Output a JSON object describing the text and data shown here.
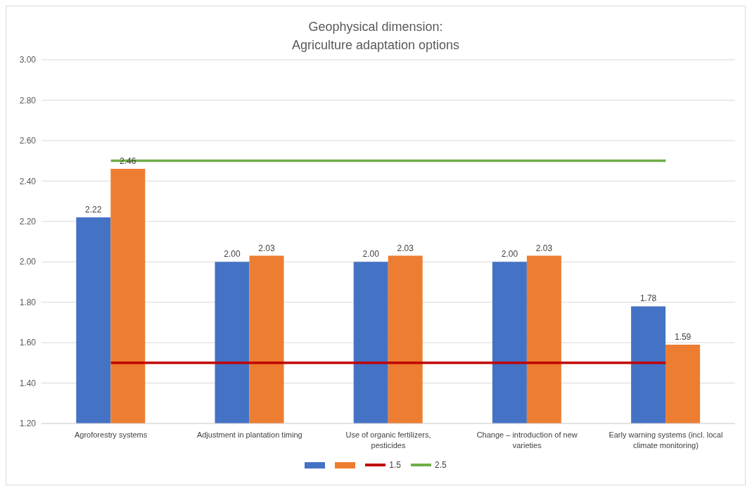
{
  "chart_data": {
    "type": "bar",
    "title": "Geophysical dimension:\nAgriculture adaptation options",
    "categories": [
      "Agroforestry systems",
      "Adjustment in plantation timing",
      "Use of organic fertilizers, pesticides",
      "Change – introduction of new varieties",
      "Early warning systems (incl. local climate monitoring)"
    ],
    "series": [
      {
        "color": "#4472c4",
        "values": [
          2.22,
          2.0,
          2.0,
          2.0,
          1.78
        ],
        "value_labels": [
          "2.22",
          "2.00",
          "2.00",
          "2.00",
          "1.78"
        ]
      },
      {
        "color": "#ed7d31",
        "values": [
          2.46,
          2.03,
          2.03,
          2.03,
          1.59
        ],
        "value_labels": [
          "2.46",
          "2.03",
          "2.03",
          "2.03",
          "1.59"
        ]
      },
      {
        "type": "line",
        "name": "1.5",
        "color": "#c00000",
        "values": [
          1.5,
          1.5,
          1.5,
          1.5,
          1.5
        ]
      },
      {
        "type": "line",
        "name": "2.5",
        "color": "#70ad47",
        "values": [
          2.5,
          2.5,
          2.5,
          2.5,
          2.5
        ]
      }
    ],
    "ylim": [
      1.2,
      3.0
    ],
    "yticks": [
      {
        "value": 1.2,
        "label": "1.20"
      },
      {
        "value": 1.4,
        "label": "1.40"
      },
      {
        "value": 1.6,
        "label": "1.60"
      },
      {
        "value": 1.8,
        "label": "1.80"
      },
      {
        "value": 2.0,
        "label": "2.00"
      },
      {
        "value": 2.2,
        "label": "2.20"
      },
      {
        "value": 2.4,
        "label": "2.40"
      },
      {
        "value": 2.6,
        "label": "2.60"
      },
      {
        "value": 2.8,
        "label": "2.80"
      },
      {
        "value": 3.0,
        "label": "3.00"
      }
    ],
    "grid": "y",
    "legend": "bottom",
    "marker": "none",
    "line_style": "solid"
  }
}
